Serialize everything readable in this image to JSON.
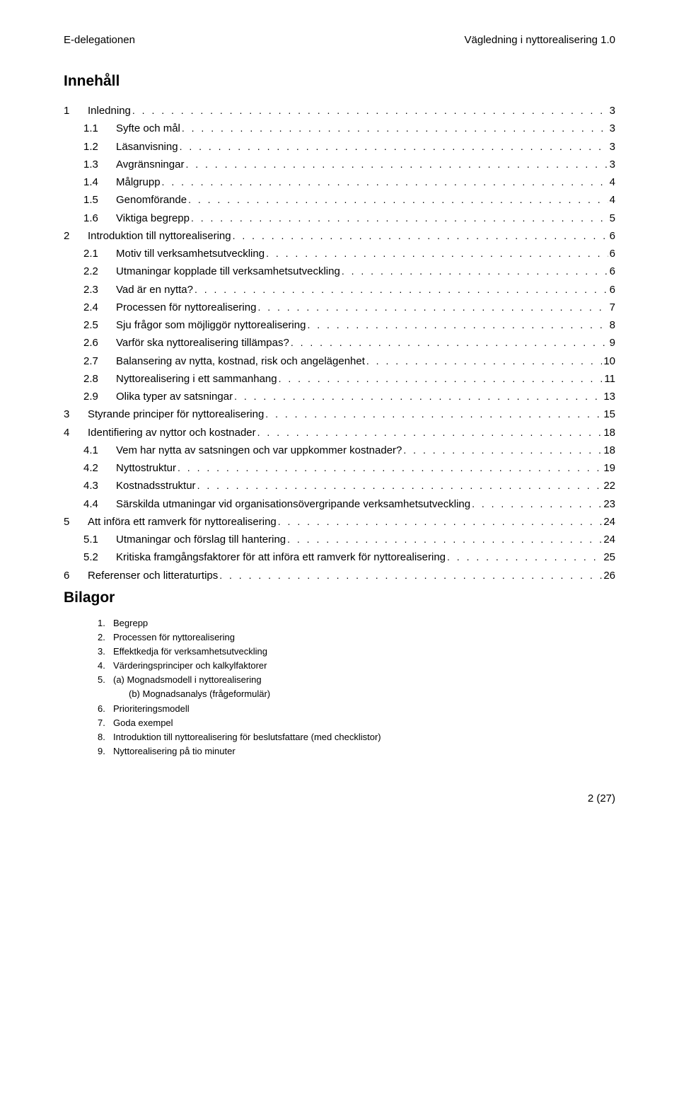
{
  "header": {
    "left": "E-delegationen",
    "right": "Vägledning i nyttorealisering 1.0"
  },
  "mainHeading": "Innehåll",
  "toc": [
    {
      "level": 1,
      "num": "1",
      "text": "Inledning",
      "page": "3"
    },
    {
      "level": 2,
      "num": "1.1",
      "text": "Syfte och mål",
      "page": "3"
    },
    {
      "level": 2,
      "num": "1.2",
      "text": "Läsanvisning",
      "page": "3"
    },
    {
      "level": 2,
      "num": "1.3",
      "text": "Avgränsningar",
      "page": "3"
    },
    {
      "level": 2,
      "num": "1.4",
      "text": "Målgrupp",
      "page": "4"
    },
    {
      "level": 2,
      "num": "1.5",
      "text": "Genomförande",
      "page": "4"
    },
    {
      "level": 2,
      "num": "1.6",
      "text": "Viktiga begrepp",
      "page": "5"
    },
    {
      "level": 1,
      "num": "2",
      "text": "Introduktion till nyttorealisering",
      "page": "6"
    },
    {
      "level": 2,
      "num": "2.1",
      "text": "Motiv till verksamhetsutveckling",
      "page": "6"
    },
    {
      "level": 2,
      "num": "2.2",
      "text": "Utmaningar kopplade till verksamhetsutveckling",
      "page": "6"
    },
    {
      "level": 2,
      "num": "2.3",
      "text": "Vad är en nytta?",
      "page": "6"
    },
    {
      "level": 2,
      "num": "2.4",
      "text": "Processen för nyttorealisering",
      "page": "7"
    },
    {
      "level": 2,
      "num": "2.5",
      "text": "Sju frågor som möjliggör nyttorealisering",
      "page": "8"
    },
    {
      "level": 2,
      "num": "2.6",
      "text": "Varför ska nyttorealisering tillämpas?",
      "page": "9"
    },
    {
      "level": 2,
      "num": "2.7",
      "text": "Balansering av nytta, kostnad, risk och angelägenhet",
      "page": "10"
    },
    {
      "level": 2,
      "num": "2.8",
      "text": "Nyttorealisering i ett sammanhang",
      "page": "11"
    },
    {
      "level": 2,
      "num": "2.9",
      "text": "Olika typer av satsningar",
      "page": "13"
    },
    {
      "level": 1,
      "num": "3",
      "text": "Styrande principer för nyttorealisering",
      "page": "15"
    },
    {
      "level": 1,
      "num": "4",
      "text": "Identifiering av nyttor och kostnader",
      "page": "18"
    },
    {
      "level": 2,
      "num": "4.1",
      "text": "Vem har nytta av satsningen och var uppkommer kostnader?",
      "page": "18"
    },
    {
      "level": 2,
      "num": "4.2",
      "text": "Nyttostruktur",
      "page": "19"
    },
    {
      "level": 2,
      "num": "4.3",
      "text": "Kostnadsstruktur",
      "page": "22"
    },
    {
      "level": 2,
      "num": "4.4",
      "text": "Särskilda utmaningar vid organisationsövergripande  verksamhetsutveckling",
      "page": "23"
    },
    {
      "level": 1,
      "num": "5",
      "text": "Att införa ett ramverk för nyttorealisering",
      "page": "24"
    },
    {
      "level": 2,
      "num": "5.1",
      "text": "Utmaningar och förslag till hantering",
      "page": "24"
    },
    {
      "level": 2,
      "num": "5.2",
      "text": "Kritiska framgångsfaktorer för att införa ett ramverk för  nyttorealisering",
      "page": "25"
    },
    {
      "level": 1,
      "num": "6",
      "text": "Referenser och litteraturtips",
      "page": "26"
    }
  ],
  "bilagorHeading": "Bilagor",
  "bilagor": [
    {
      "num": "1.",
      "text": "Begrepp"
    },
    {
      "num": "2.",
      "text": "Processen för nyttorealisering"
    },
    {
      "num": "3.",
      "text": "Effektkedja för verksamhetsutveckling"
    },
    {
      "num": "4.",
      "text": "Värderingsprinciper och kalkylfaktorer"
    },
    {
      "num": "5.",
      "text": "(a) Mognadsmodell i nyttorealisering",
      "sub": "(b) Mognadsanalys (frågeformulär)"
    },
    {
      "num": "6.",
      "text": "Prioriteringsmodell"
    },
    {
      "num": "7.",
      "text": "Goda exempel"
    },
    {
      "num": "8.",
      "text": "Introduktion till nyttorealisering för beslutsfattare (med checklistor)"
    },
    {
      "num": "9.",
      "text": "Nyttorealisering på tio minuter"
    }
  ],
  "footer": "2 (27)",
  "dotsFill": ". . . . . . . . . . . . . . . . . . . . . . . . . . . . . . . . . . . . . . . . . . . . . . . . . . . . . . . . . . . . . . . . . . . . . . . . . . . . . . . . . . . . . . . . . . . . . . . . . . . ."
}
